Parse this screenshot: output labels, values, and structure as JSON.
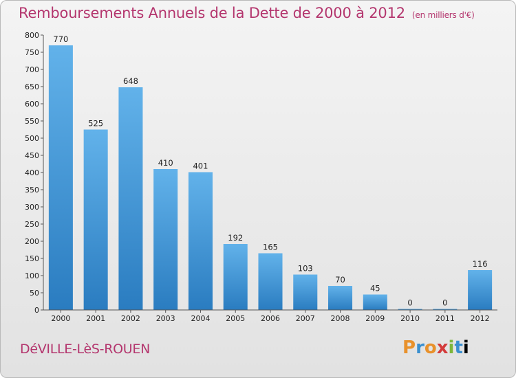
{
  "header": {
    "title": "Remboursements Annuels de la Dette de 2000 à 2012",
    "subtitle": "(en milliers d'€)"
  },
  "footer": {
    "commune": "DéVILLE-LèS-ROUEN",
    "logo_letters": [
      "P",
      "r",
      "o",
      "x",
      "i",
      "t",
      "i"
    ]
  },
  "colors": {
    "accent": "#b4366e",
    "bar_top": "#62b2ea",
    "bar_bottom": "#2a7cc0"
  },
  "chart_data": {
    "type": "bar",
    "title": "Remboursements Annuels de la Dette de 2000 à 2012",
    "subtitle": "(en milliers d'€)",
    "categories": [
      "2000",
      "2001",
      "2002",
      "2003",
      "2004",
      "2005",
      "2006",
      "2007",
      "2008",
      "2009",
      "2010",
      "2011",
      "2012"
    ],
    "values": [
      770,
      525,
      648,
      410,
      401,
      192,
      165,
      103,
      70,
      45,
      0,
      0,
      116
    ],
    "xlabel": "",
    "ylabel": "",
    "ylim": [
      0,
      800
    ],
    "yticks": [
      0,
      50,
      100,
      150,
      200,
      250,
      300,
      350,
      400,
      450,
      500,
      550,
      600,
      650,
      700,
      750,
      800
    ],
    "grid": false,
    "legend": "none"
  }
}
